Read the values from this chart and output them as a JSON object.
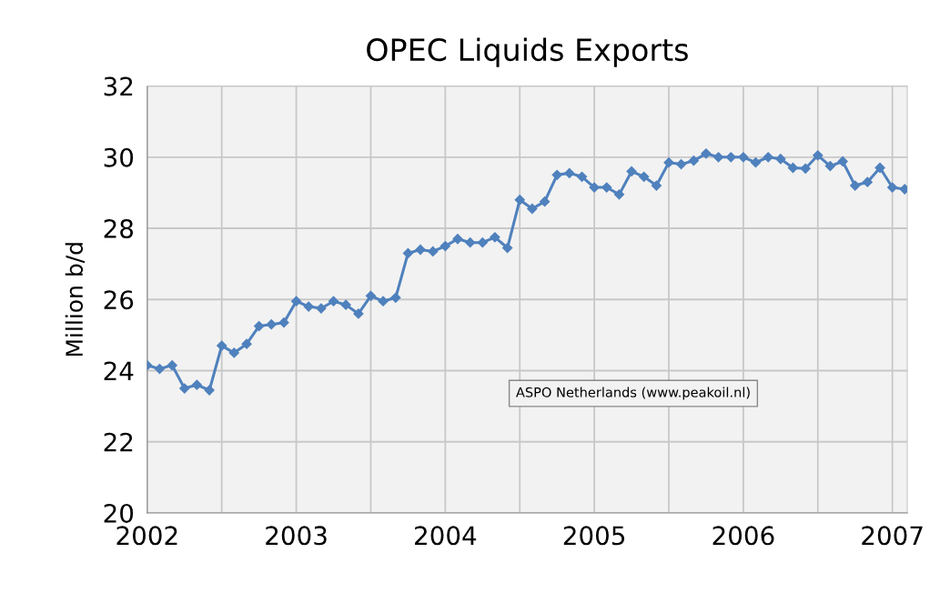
{
  "chart_data": {
    "type": "line",
    "title": "OPEC Liquids Exports",
    "ylabel": "Million b/d",
    "annotations": [
      "ASPO Netherlands (www.peakoil.nl)"
    ],
    "x": [
      2002,
      2002.083,
      2002.167,
      2002.25,
      2002.333,
      2002.417,
      2002.5,
      2002.583,
      2002.667,
      2002.75,
      2002.833,
      2002.917,
      2003,
      2003.083,
      2003.167,
      2003.25,
      2003.333,
      2003.417,
      2003.5,
      2003.583,
      2003.667,
      2003.75,
      2003.833,
      2003.917,
      2004,
      2004.083,
      2004.167,
      2004.25,
      2004.333,
      2004.417,
      2004.5,
      2004.583,
      2004.667,
      2004.75,
      2004.833,
      2004.917,
      2005,
      2005.083,
      2005.167,
      2005.25,
      2005.333,
      2005.417,
      2005.5,
      2005.583,
      2005.667,
      2005.75,
      2005.833,
      2005.917,
      2006,
      2006.083,
      2006.167,
      2006.25,
      2006.333,
      2006.417,
      2006.5,
      2006.583,
      2006.667,
      2006.75,
      2006.833,
      2006.917,
      2007,
      2007.083
    ],
    "series": [
      {
        "color": "#4f81bd",
        "values": [
          24.15,
          24.05,
          24.15,
          23.5,
          23.6,
          23.45,
          24.7,
          24.5,
          24.75,
          25.25,
          25.3,
          25.35,
          25.95,
          25.8,
          25.75,
          25.95,
          25.85,
          25.6,
          26.1,
          25.95,
          26.05,
          27.3,
          27.4,
          27.35,
          27.5,
          27.7,
          27.6,
          27.6,
          27.75,
          27.45,
          28.8,
          28.55,
          28.75,
          29.5,
          29.55,
          29.45,
          29.15,
          29.15,
          28.95,
          29.6,
          29.45,
          29.2,
          29.85,
          29.8,
          29.9,
          30.1,
          30.0,
          30.0,
          30.0,
          29.85,
          30.0,
          29.95,
          29.7,
          29.68,
          30.05,
          29.75,
          29.88,
          29.2,
          29.3,
          29.7,
          29.15,
          29.1
        ]
      }
    ],
    "xlim": [
      2002,
      2007.1
    ],
    "xticks": [
      2002,
      {
        "value": 2002.5,
        "label": null
      },
      2003,
      {
        "value": 2003.5,
        "label": null
      },
      2004,
      {
        "value": 2004.5,
        "label": null
      },
      2005,
      {
        "value": 2005.5,
        "label": null
      },
      2006,
      {
        "value": 2006.5,
        "label": null
      },
      2007
    ],
    "ylim": [
      20,
      32
    ],
    "yticks": [
      20,
      22,
      24,
      26,
      28,
      30,
      32
    ],
    "grid": true,
    "legend": false,
    "marker": "diamond",
    "line_style": "solid"
  }
}
